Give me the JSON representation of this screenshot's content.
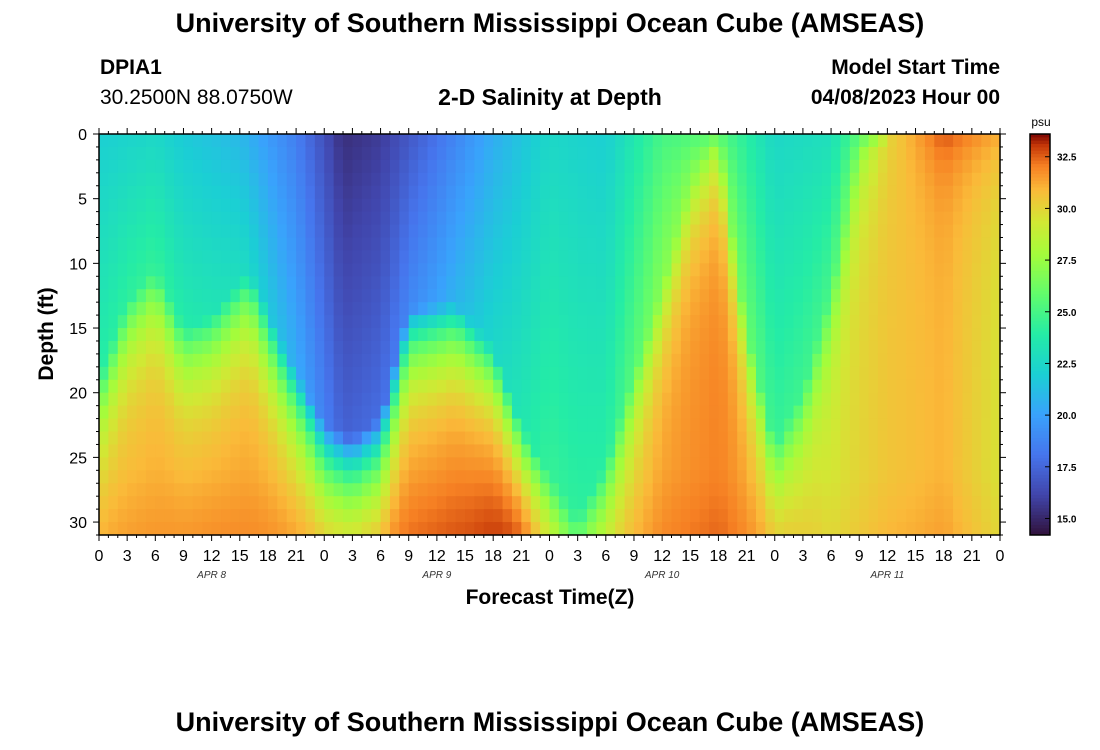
{
  "page": {
    "title_top": "University of Southern Mississippi Ocean Cube (AMSEAS)",
    "title_bottom": "University of Southern Mississippi Ocean Cube (AMSEAS)",
    "station_id": "DPIA1",
    "station_coords": "30.2500N  88.0750W",
    "chart_title": "2-D Salinity at Depth",
    "model_start_label": "Model Start Time",
    "model_start_value": "04/08/2023 Hour 00"
  },
  "chart_data": {
    "type": "heatmap",
    "title": "2-D Salinity at Depth",
    "xlabel": "Forecast Time(Z)",
    "ylabel": "Depth (ft)",
    "xlim": [
      0,
      96
    ],
    "ylim": [
      0,
      31
    ],
    "x_tick_labels": [
      "0",
      "3",
      "6",
      "9",
      "12",
      "15",
      "18",
      "21",
      "0",
      "3",
      "6",
      "9",
      "12",
      "15",
      "18",
      "21",
      "0",
      "3",
      "6",
      "9",
      "12",
      "15",
      "18",
      "21",
      "0",
      "3",
      "6",
      "9",
      "12",
      "15",
      "18",
      "21",
      "0"
    ],
    "date_labels": [
      "APR 8",
      "APR 9",
      "APR 10",
      "APR 11"
    ],
    "y_ticks": [
      0,
      5,
      10,
      15,
      20,
      25,
      30
    ],
    "colorbar": {
      "unit": "psu",
      "min": 14.2,
      "max": 33.6,
      "ticks": [
        15.0,
        17.5,
        20.0,
        22.5,
        25.0,
        27.5,
        30.0,
        32.5
      ],
      "tick_labels": [
        "15.0",
        "17.5",
        "20.0",
        "22.5",
        "25.0",
        "27.5",
        "30.0",
        "32.5"
      ]
    },
    "surface_salinity_psu": [
      {
        "hour": 0,
        "value": 22.0
      },
      {
        "hour": 6,
        "value": 22.5
      },
      {
        "hour": 9,
        "value": 21.8
      },
      {
        "hour": 15,
        "value": 21.0
      },
      {
        "hour": 21,
        "value": 18.5
      },
      {
        "hour": 26,
        "value": 15.3
      },
      {
        "hour": 30,
        "value": 15.8
      },
      {
        "hour": 36,
        "value": 18.0
      },
      {
        "hour": 42,
        "value": 20.5
      },
      {
        "hour": 48,
        "value": 22.5
      },
      {
        "hour": 54,
        "value": 22.0
      },
      {
        "hour": 60,
        "value": 25.0
      },
      {
        "hour": 66,
        "value": 25.5
      },
      {
        "hour": 72,
        "value": 22.5
      },
      {
        "hour": 78,
        "value": 23.0
      },
      {
        "hour": 84,
        "value": 28.0
      },
      {
        "hour": 90,
        "value": 30.5
      },
      {
        "hour": 96,
        "value": 29.0
      }
    ],
    "halocline_depth_ft": [
      {
        "hour": 0,
        "value": 19
      },
      {
        "hour": 3,
        "value": 13
      },
      {
        "hour": 6,
        "value": 10.5
      },
      {
        "hour": 9,
        "value": 15
      },
      {
        "hour": 12,
        "value": 14
      },
      {
        "hour": 16,
        "value": 10.5
      },
      {
        "hour": 20,
        "value": 17
      },
      {
        "hour": 24,
        "value": 22.5
      },
      {
        "hour": 27,
        "value": 23.5
      },
      {
        "hour": 30,
        "value": 22
      },
      {
        "hour": 33,
        "value": 13.5
      },
      {
        "hour": 38,
        "value": 13
      },
      {
        "hour": 42,
        "value": 16.5
      },
      {
        "hour": 45,
        "value": 22.5
      },
      {
        "hour": 48,
        "value": 26.5
      },
      {
        "hour": 51,
        "value": 30
      },
      {
        "hour": 54,
        "value": 25.5
      },
      {
        "hour": 57,
        "value": 18.5
      },
      {
        "hour": 60,
        "value": 12
      },
      {
        "hour": 63,
        "value": 4
      },
      {
        "hour": 66,
        "value": 0.5
      },
      {
        "hour": 69,
        "value": 15
      },
      {
        "hour": 72,
        "value": 24
      },
      {
        "hour": 75,
        "value": 20
      },
      {
        "hour": 78,
        "value": 12
      },
      {
        "hour": 81,
        "value": 2
      },
      {
        "hour": 84,
        "value": 0.5
      },
      {
        "hour": 96,
        "value": 0.5
      }
    ],
    "bottom_salinity_psu": [
      {
        "hour": 0,
        "value": 31.0
      },
      {
        "hour": 12,
        "value": 31.5
      },
      {
        "hour": 24,
        "value": 31.5
      },
      {
        "hour": 39,
        "value": 32.5
      },
      {
        "hour": 45,
        "value": 33.4
      },
      {
        "hour": 50,
        "value": 29.5
      },
      {
        "hour": 54,
        "value": 30.0
      },
      {
        "hour": 60,
        "value": 31.5
      },
      {
        "hour": 66,
        "value": 32.0
      },
      {
        "hour": 72,
        "value": 31.0
      },
      {
        "hour": 78,
        "value": 29.5
      },
      {
        "hour": 84,
        "value": 30.5
      },
      {
        "hour": 90,
        "value": 31.0
      },
      {
        "hour": 96,
        "value": 29.5
      }
    ]
  }
}
